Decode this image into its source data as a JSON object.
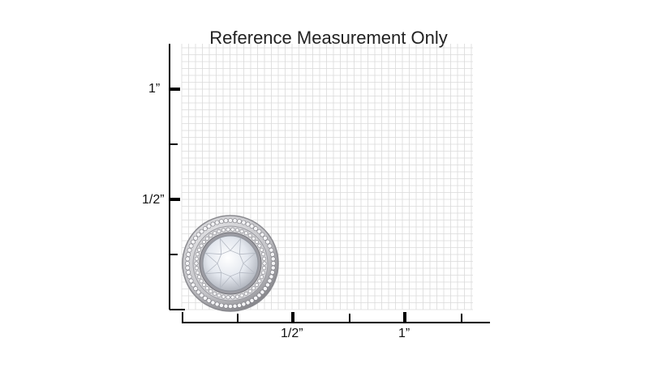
{
  "title": "Reference Measurement Only",
  "axes": {
    "y_ticks": [
      "1”",
      "1/2”"
    ],
    "x_ticks": [
      "1/2”",
      "1”"
    ]
  },
  "colors": {
    "grid_line": "#dadada",
    "axis": "#000000",
    "metal": "#b8b8bc",
    "stone": "#e8ecf2"
  },
  "product": {
    "icon": "halo-stud-earring-icon"
  }
}
